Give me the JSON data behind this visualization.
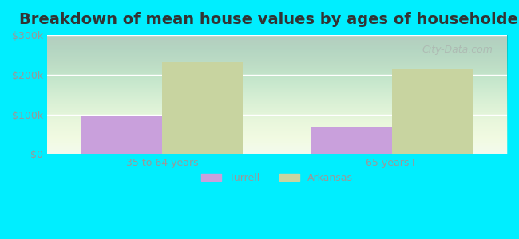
{
  "title": "Breakdown of mean house values by ages of householders",
  "categories": [
    "35 to 64 years",
    "65 years+"
  ],
  "turrell_values": [
    95000,
    67000
  ],
  "arkansas_values": [
    232000,
    213000
  ],
  "turrell_color": "#c9a0dc",
  "arkansas_color": "#c8d4a0",
  "ylim": [
    0,
    300000
  ],
  "yticks": [
    0,
    100000,
    200000,
    300000
  ],
  "ytick_labels": [
    "$0",
    "$100k",
    "$200k",
    "$300k"
  ],
  "background_color": "#00eeff",
  "plot_bg_start": "#e8fde8",
  "plot_bg_end": "#ffffff",
  "title_fontsize": 14,
  "axis_label_color": "#999999",
  "bar_width": 0.35,
  "legend_labels": [
    "Turrell",
    "Arkansas"
  ],
  "watermark": "City-Data.com"
}
